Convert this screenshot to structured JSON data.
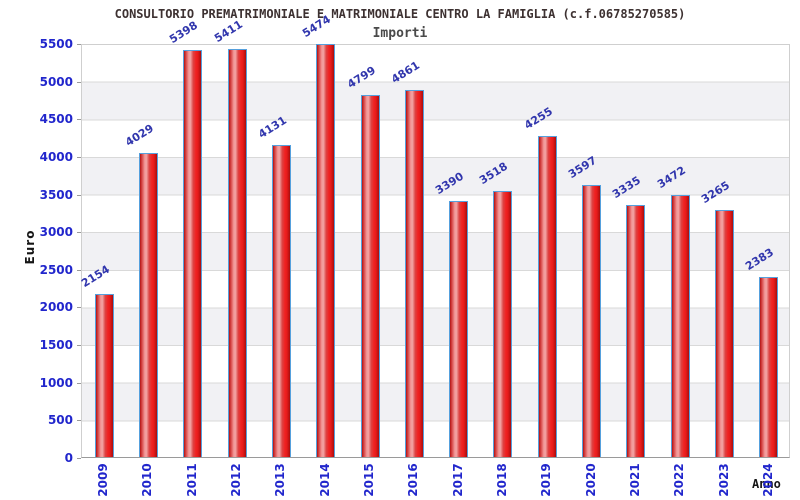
{
  "chart_data": {
    "type": "bar",
    "title": "CONSULTORIO PREMATRIMONIALE E MATRIMONIALE CENTRO LA FAMIGLIA (c.f.06785270585)",
    "subtitle": "Importi",
    "xlabel": "Anno",
    "ylabel": "Euro",
    "categories": [
      "2009",
      "2010",
      "2011",
      "2012",
      "2013",
      "2014",
      "2015",
      "2016",
      "2017",
      "2018",
      "2019",
      "2020",
      "2021",
      "2022",
      "2023",
      "2024"
    ],
    "values": [
      2154,
      4029,
      5398,
      5411,
      4131,
      5474,
      4799,
      4861,
      3390,
      3518,
      4255,
      3597,
      3335,
      3472,
      3265,
      2383
    ],
    "ylim": [
      0,
      5500
    ],
    "ytick_step": 500,
    "yticks": [
      "0",
      "500",
      "1000",
      "1500",
      "2000",
      "2500",
      "3000",
      "3500",
      "4000",
      "4500",
      "5000",
      "5500"
    ],
    "grid": "horizontal alternating bands with gridlines every 500",
    "legend": null,
    "colors": {
      "bar_fill": "#e51b1b",
      "bar_border": "#55a0dd",
      "axis_tick_label": "#2126cc",
      "value_label": "#3136ad",
      "title_text": "#3d3131",
      "subtitle_text": "#4a4a4a",
      "band_gray": "#f1f1f4",
      "gridline": "#d9d9d9"
    }
  }
}
